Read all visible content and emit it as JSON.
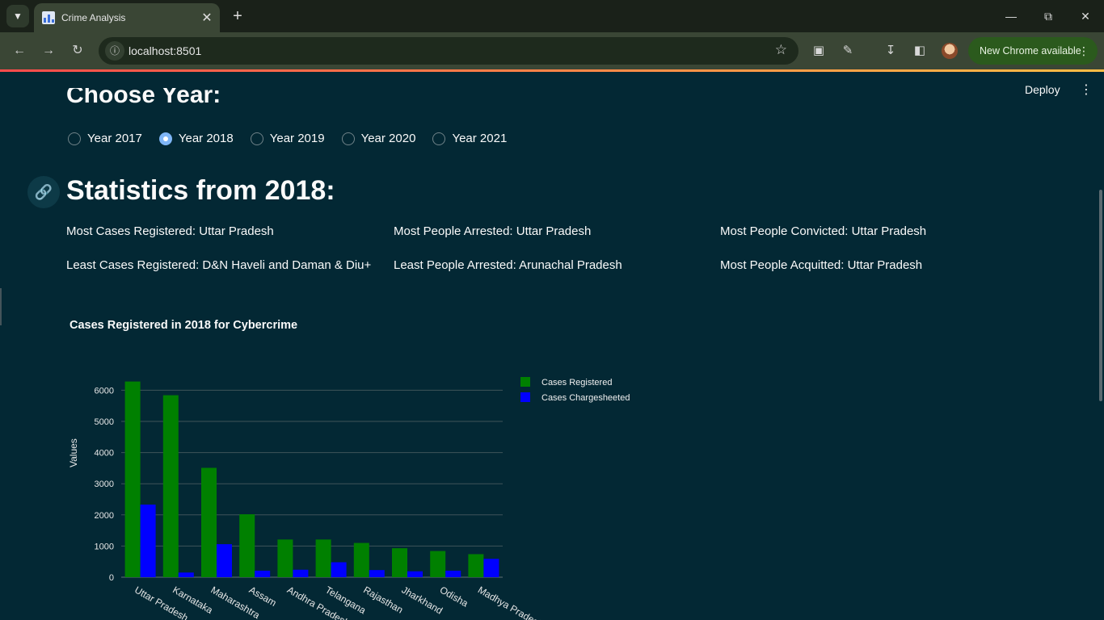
{
  "browser": {
    "tab_title": "Crime Analysis",
    "url": "localhost:8501",
    "update_label": "New Chrome available"
  },
  "app": {
    "deploy_label": "Deploy",
    "year_heading": "Choose Year:",
    "years": [
      "Year 2017",
      "Year 2018",
      "Year 2019",
      "Year 2020",
      "Year 2021"
    ],
    "selected_year": "Year 2018",
    "stats_title": "Statistics from 2018:",
    "stats": {
      "most_cases": "Most Cases Registered: Uttar Pradesh",
      "least_cases": "Least Cases Registered: D&N Haveli and Daman & Diu+",
      "most_arrested": "Most People Arrested: Uttar Pradesh",
      "least_arrested": "Least People Arrested: Arunachal Pradesh",
      "most_convicted": "Most People Convicted: Uttar Pradesh",
      "most_acquitted": "Most People Acquitted: Uttar Pradesh"
    }
  },
  "chart_data": {
    "type": "bar",
    "title": "Cases Registered in 2018 for Cybercrime",
    "xlabel": "",
    "ylabel": "Values",
    "ylim": [
      0,
      6500
    ],
    "yticks": [
      0,
      1000,
      2000,
      3000,
      4000,
      5000,
      6000
    ],
    "categories": [
      "Uttar Pradesh",
      "Karnataka",
      "Maharashtra",
      "Assam",
      "Andhra Pradesh",
      "Telangana",
      "Rajasthan",
      "Jharkhand",
      "Odisha",
      "Madhya Pradesh"
    ],
    "series": [
      {
        "name": "Cases Registered",
        "color": "#008000",
        "values": [
          6280,
          5840,
          3510,
          2020,
          1210,
          1210,
          1100,
          930,
          840,
          740
        ]
      },
      {
        "name": "Cases Chargesheeted",
        "color": "#0000ff",
        "values": [
          2330,
          150,
          1060,
          210,
          240,
          480,
          230,
          190,
          210,
          590
        ]
      }
    ],
    "grid": true,
    "legend_position": "top-right"
  }
}
